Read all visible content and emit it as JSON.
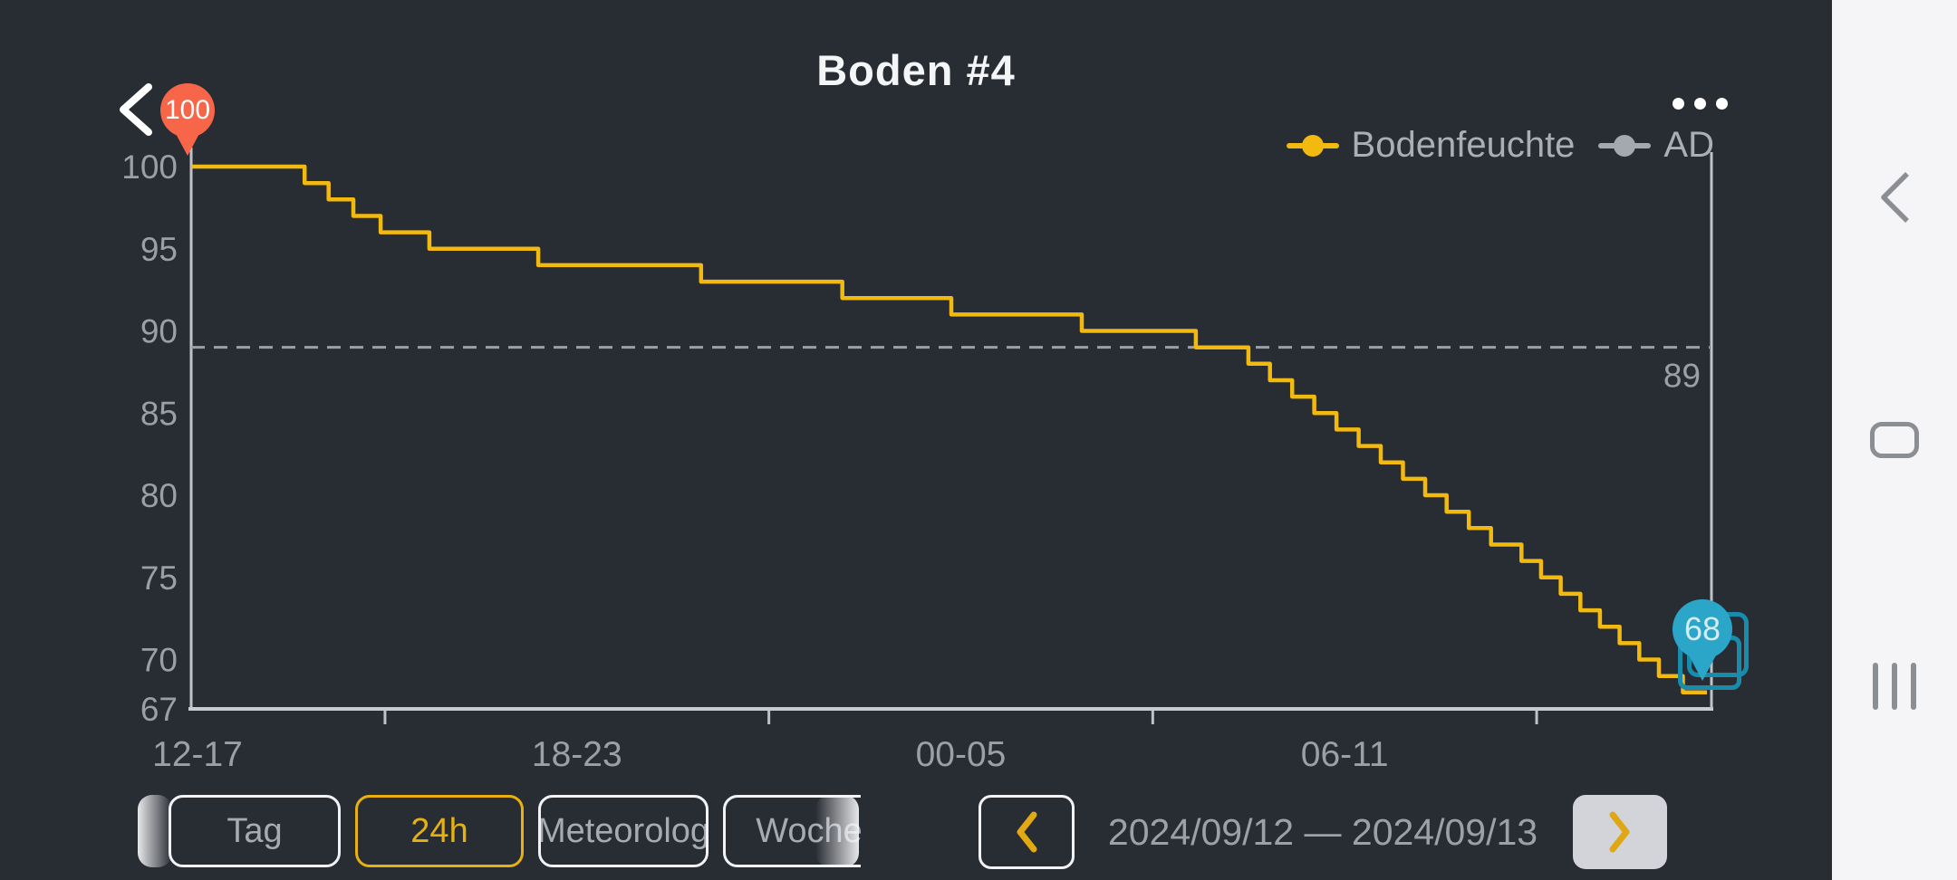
{
  "header": {
    "title": "Boden #4"
  },
  "legend": {
    "items": [
      {
        "label": "Bodenfeuchte",
        "color": "#f2ba10"
      },
      {
        "label": "AD",
        "color": "#a3a9b0"
      }
    ]
  },
  "chart_data": {
    "type": "line",
    "title": "Boden #4",
    "step": true,
    "x_axis": {
      "labels": [
        "12-17",
        "18-23",
        "00-05",
        "06-11"
      ],
      "tick_hours": [
        3.06,
        9.12,
        15.18,
        21.24
      ],
      "range_hours": [
        0,
        24
      ],
      "grid": false
    },
    "y_axis": {
      "ticks": [
        100,
        95,
        90,
        85,
        80,
        75,
        70,
        67
      ],
      "min": 67,
      "max": 100
    },
    "threshold": {
      "value": 89,
      "label": "89",
      "style": "dashed"
    },
    "series": [
      {
        "name": "Bodenfeuchte",
        "color": "#f2ba10",
        "end_hour": 23.93,
        "points": [
          [
            0,
            100
          ],
          [
            1.79,
            99
          ],
          [
            2.17,
            98
          ],
          [
            2.56,
            97
          ],
          [
            2.99,
            96
          ],
          [
            3.76,
            95
          ],
          [
            5.48,
            94
          ],
          [
            8.05,
            93
          ],
          [
            10.28,
            92
          ],
          [
            12.0,
            91
          ],
          [
            14.06,
            90
          ],
          [
            15.86,
            89
          ],
          [
            16.69,
            88
          ],
          [
            17.03,
            87
          ],
          [
            17.38,
            86
          ],
          [
            17.73,
            85
          ],
          [
            18.08,
            84
          ],
          [
            18.43,
            83
          ],
          [
            18.78,
            82
          ],
          [
            19.13,
            81
          ],
          [
            19.48,
            80
          ],
          [
            19.82,
            79
          ],
          [
            20.17,
            78
          ],
          [
            20.52,
            77
          ],
          [
            21.0,
            76
          ],
          [
            21.31,
            75
          ],
          [
            21.62,
            74
          ],
          [
            21.93,
            73
          ],
          [
            22.24,
            72
          ],
          [
            22.55,
            71
          ],
          [
            22.86,
            70
          ],
          [
            23.17,
            69
          ],
          [
            23.55,
            68
          ]
        ]
      },
      {
        "name": "AD",
        "color": "#a3a9b0",
        "points": []
      }
    ],
    "markers": {
      "start": {
        "label": "100",
        "value": 100,
        "color": "#f8664a"
      },
      "end": {
        "label": "68",
        "value": 68,
        "color": "#2ba6c9"
      }
    }
  },
  "controls": {
    "range_buttons": [
      {
        "label": "Tag",
        "active": false
      },
      {
        "label": "24h",
        "active": true
      },
      {
        "label": "Meteorolog",
        "active": false
      },
      {
        "label": "Woche",
        "active": false
      }
    ],
    "date_range": "2024/09/12 — 2024/09/13"
  }
}
